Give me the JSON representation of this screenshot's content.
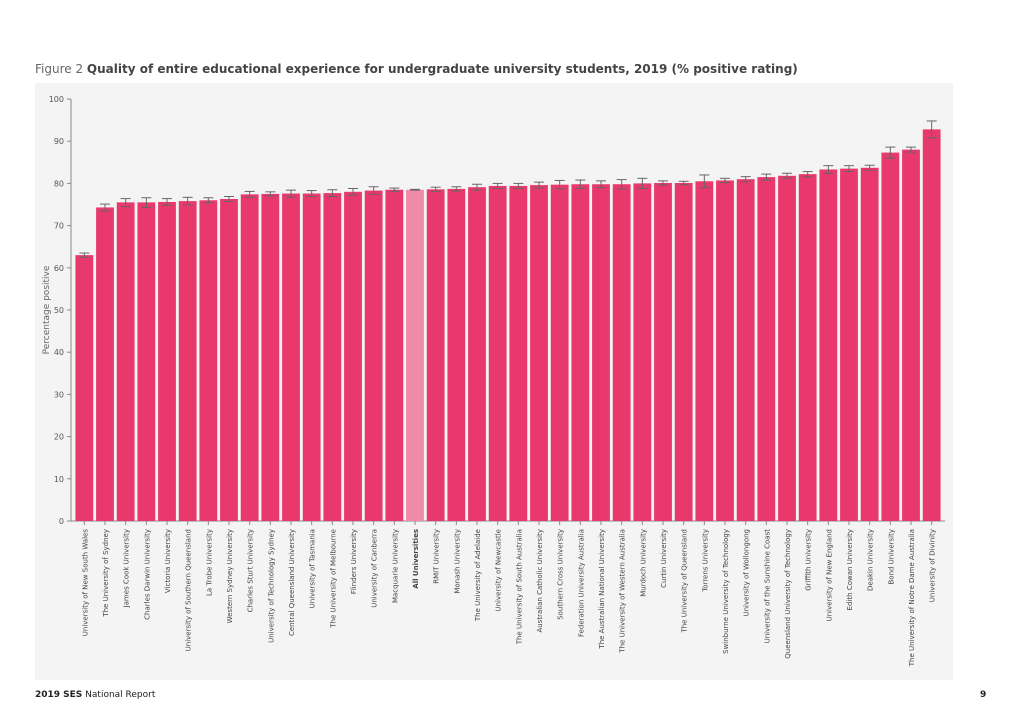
{
  "figure": {
    "prefix": "Figure 2",
    "title": "Quality of entire educational experience for undergraduate university students, 2019 (% positive rating)"
  },
  "footer": {
    "report_year": "2019 SES",
    "report_name": "National Report",
    "page_number": "9"
  },
  "colors": {
    "bar": "#e8386c",
    "highlight_bar": "#f08aa8",
    "error_bar": "#666666",
    "panel_background": "#f4f4f4"
  },
  "chart_data": {
    "type": "bar",
    "title": "Quality of entire educational experience for undergraduate university students, 2019 (% positive rating)",
    "xlabel": "",
    "ylabel": "Percentage positive",
    "ylim": [
      0,
      100
    ],
    "yticks": [
      0,
      10,
      20,
      30,
      40,
      50,
      60,
      70,
      80,
      90,
      100
    ],
    "grid": false,
    "legend": "none",
    "highlight_category": "All Universities",
    "categories": [
      "University of New South Wales",
      "The University of Sydney",
      "James Cook University",
      "Charles Darwin University",
      "Victoria University",
      "University of Southern Queensland",
      "La Trobe University",
      "Western Sydney University",
      "Charles Sturt University",
      "University of Technology Sydney",
      "Central Queensland University",
      "University of Tasmania",
      "The University of Melbourne",
      "Flinders University",
      "University of Canberra",
      "Macquarie University",
      "All Universities",
      "RMIT University",
      "Monash University",
      "The University of Adelaide",
      "University of Newcastle",
      "The University of South Australia",
      "Australian Catholic University",
      "Southern Cross University",
      "Federation University Australia",
      "The Australian National University",
      "The University of Western Australia",
      "Murdoch University",
      "Curtin University",
      "The University of Queensland",
      "Torrens University",
      "Swinburne University of Technology",
      "University of Wollongong",
      "University of the Sunshine Coast",
      "Queensland University of Technology",
      "Griffith University",
      "University of New England",
      "Edith Cowan University",
      "Deakin University",
      "Bond University",
      "The University of Notre Dame Australia",
      "University of Divinity"
    ],
    "values": [
      63.0,
      74.3,
      75.5,
      75.5,
      75.6,
      75.8,
      76.0,
      76.3,
      77.4,
      77.5,
      77.6,
      77.6,
      77.7,
      78.0,
      78.3,
      78.5,
      78.5,
      78.6,
      78.7,
      79.1,
      79.4,
      79.4,
      79.6,
      79.7,
      79.8,
      79.8,
      79.8,
      80.0,
      80.1,
      80.1,
      80.5,
      80.7,
      81.0,
      81.5,
      81.8,
      82.2,
      83.3,
      83.5,
      83.7,
      87.3,
      88.0,
      92.8
    ],
    "error_low": [
      62.5,
      73.5,
      74.5,
      74.3,
      74.8,
      74.9,
      75.4,
      75.7,
      76.7,
      77.0,
      76.8,
      76.9,
      76.9,
      77.2,
      77.4,
      78.1,
      78.4,
      78.1,
      78.2,
      78.4,
      78.8,
      78.8,
      78.9,
      78.7,
      78.8,
      79.0,
      78.7,
      78.8,
      79.6,
      79.7,
      79.0,
      80.2,
      80.4,
      80.8,
      81.2,
      81.6,
      82.4,
      82.8,
      83.1,
      86.0,
      87.4,
      90.8
    ],
    "error_high": [
      63.5,
      75.1,
      76.4,
      76.6,
      76.4,
      76.7,
      76.6,
      76.9,
      78.1,
      78.0,
      78.4,
      78.3,
      78.5,
      78.8,
      79.2,
      78.9,
      78.6,
      79.1,
      79.2,
      79.8,
      80.0,
      80.0,
      80.3,
      80.7,
      80.8,
      80.6,
      80.9,
      81.2,
      80.6,
      80.5,
      82.0,
      81.2,
      81.6,
      82.2,
      82.4,
      82.8,
      84.2,
      84.2,
      84.3,
      88.6,
      88.6,
      94.8
    ]
  }
}
